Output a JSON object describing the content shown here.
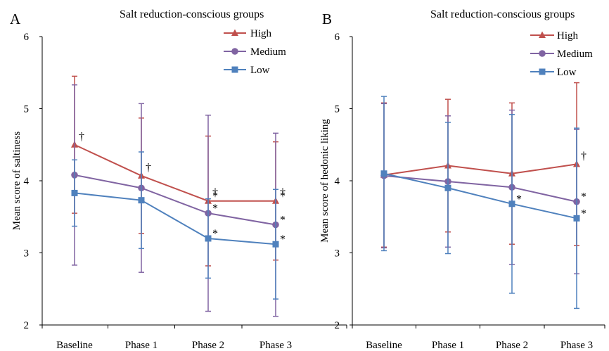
{
  "chart_data": [
    {
      "panel_label": "A",
      "type": "line",
      "title": "Salt reduction-conscious groups",
      "ylabel": "Mean score of saltiness",
      "xlabel": "",
      "categories": [
        "Baseline",
        "Phase 1",
        "Phase 2",
        "Phase 3"
      ],
      "ylim": [
        2,
        6
      ],
      "yticks": [
        2,
        3,
        4,
        5,
        6
      ],
      "grid": false,
      "legend_position": "top-right",
      "series": [
        {
          "name": "High",
          "color": "#C0504D",
          "marker": "triangle",
          "values": [
            4.5,
            4.07,
            3.72,
            3.72
          ],
          "errors": [
            0.95,
            0.8,
            0.9,
            0.82
          ],
          "annotations": [
            "†",
            "†",
            "†*",
            "†*"
          ]
        },
        {
          "name": "Medium",
          "color": "#8064A2",
          "marker": "circle",
          "values": [
            4.08,
            3.9,
            3.55,
            3.39
          ],
          "errors": [
            1.25,
            1.17,
            1.36,
            1.27
          ],
          "annotations": [
            "",
            "",
            "*",
            "*"
          ]
        },
        {
          "name": "Low",
          "color": "#4F81BD",
          "marker": "square",
          "values": [
            3.83,
            3.73,
            3.2,
            3.12
          ],
          "errors": [
            0.46,
            0.67,
            0.55,
            0.76
          ],
          "annotations": [
            "",
            "",
            "*",
            "*"
          ]
        }
      ]
    },
    {
      "panel_label": "B",
      "type": "line",
      "title": "Salt reduction-conscious groups",
      "ylabel": "Mean score of hedonic liking",
      "xlabel": "",
      "categories": [
        "Baseline",
        "Phase 1",
        "Phase 2",
        "Phase 3"
      ],
      "ylim": [
        2,
        6
      ],
      "yticks": [
        2,
        3,
        4,
        5,
        6
      ],
      "grid": false,
      "legend_position": "top-right",
      "series": [
        {
          "name": "High",
          "color": "#C0504D",
          "marker": "triangle",
          "values": [
            4.08,
            4.21,
            4.1,
            4.23
          ],
          "errors": [
            1.0,
            0.92,
            0.98,
            1.13
          ],
          "annotations": [
            "",
            "",
            "",
            "†"
          ]
        },
        {
          "name": "Medium",
          "color": "#8064A2",
          "marker": "circle",
          "values": [
            4.07,
            3.99,
            3.91,
            3.71
          ],
          "errors": [
            1.0,
            0.91,
            1.07,
            1.0
          ],
          "annotations": [
            "",
            "",
            "",
            "*"
          ]
        },
        {
          "name": "Low",
          "color": "#4F81BD",
          "marker": "square",
          "values": [
            4.1,
            3.9,
            3.68,
            3.48
          ],
          "errors": [
            1.07,
            0.91,
            1.24,
            1.25
          ],
          "annotations": [
            "",
            "",
            "*",
            "*"
          ]
        }
      ]
    }
  ]
}
